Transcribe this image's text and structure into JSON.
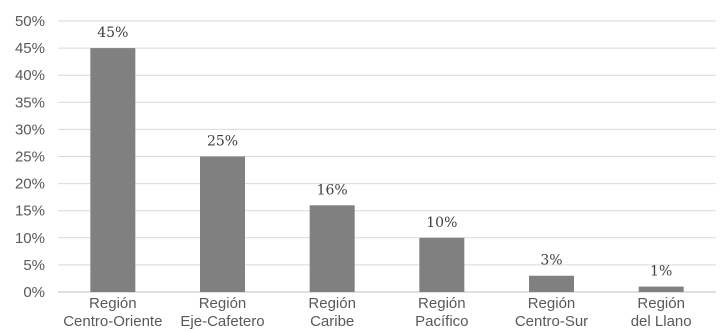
{
  "chart_data": {
    "type": "bar",
    "categories": [
      [
        "Región",
        "Centro-Oriente"
      ],
      [
        "Región",
        "Eje-Cafetero"
      ],
      [
        "Región",
        "Caribe"
      ],
      [
        "Región",
        "Pacífico"
      ],
      [
        "Región",
        "Centro-Sur"
      ],
      [
        "Región",
        "del Llano"
      ]
    ],
    "values": [
      45,
      25,
      16,
      10,
      3,
      1
    ],
    "data_labels": [
      "45%",
      "25%",
      "16%",
      "10%",
      "3%",
      "1%"
    ],
    "ylim": [
      0,
      50
    ],
    "y_ticks": [
      "0%",
      "5%",
      "10%",
      "15%",
      "20%",
      "25%",
      "30%",
      "35%",
      "40%",
      "45%",
      "50%"
    ],
    "grid": true,
    "legend": false,
    "bar_color": "#808080"
  }
}
